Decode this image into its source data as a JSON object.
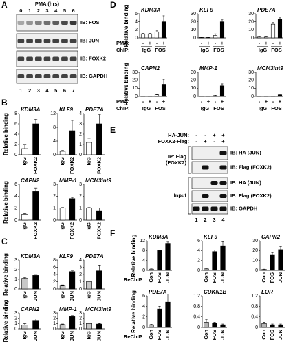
{
  "panel_labels": [
    "A",
    "B",
    "C",
    "D",
    "E",
    "F"
  ],
  "blot_a": {
    "title": "PMA (hrs)",
    "times": [
      "0",
      "1",
      "2",
      "3",
      "4",
      "5",
      "6"
    ],
    "rows": [
      "IB: FOS",
      "IB: JUN",
      "IB: FOXK2",
      "IB: GAPDH"
    ],
    "lanes": [
      "1",
      "2",
      "3",
      "4",
      "5",
      "6",
      "7"
    ]
  },
  "blot_e": {
    "conditions": [
      {
        "label": "HA-JUN:",
        "signs": [
          "-",
          "-",
          "+",
          "+"
        ]
      },
      {
        "label": "FOXK2-Flag:",
        "signs": [
          "-",
          "+",
          "-",
          "+"
        ]
      }
    ],
    "groups": [
      [
        "IP: Flag",
        "(FOXK2)"
      ],
      [
        "Input"
      ]
    ],
    "rows": [
      "IB: HA (JUN)",
      "IB: Flag (FOXK2)",
      "IB: HA (JUN)",
      "IB: Flag (FOXK2)",
      "IB: GAPDH"
    ],
    "lanes": [
      "1",
      "2",
      "3",
      "4"
    ]
  },
  "chart_data": [
    {
      "type": "bar",
      "title": "KDM3A",
      "ylabel": "Relative binding",
      "categories": [
        "IgG",
        "FOXK2"
      ],
      "colors": [
        "#ffffff",
        "#000000"
      ],
      "values": [
        1.2,
        6.0
      ],
      "errors": [
        0.7,
        0.9
      ],
      "ylim": [
        0,
        8
      ],
      "yticks": [
        0,
        2,
        4,
        6,
        8
      ]
    },
    {
      "type": "bar",
      "title": "KLF9",
      "categories": [
        "IgG",
        "FOXK2"
      ],
      "colors": [
        "#ffffff",
        "#000000"
      ],
      "values": [
        1.0,
        7.0
      ],
      "errors": [
        0.3,
        3.0
      ],
      "ylim": [
        0,
        12
      ],
      "yticks": [
        0,
        4,
        8,
        12
      ]
    },
    {
      "type": "bar",
      "title": "PDE7A",
      "categories": [
        "IgG",
        "FOXK2"
      ],
      "colors": [
        "#ffffff",
        "#000000"
      ],
      "values": [
        1.2,
        3.0
      ],
      "errors": [
        0.4,
        0.9
      ],
      "ylim": [
        0,
        4
      ],
      "yticks": [
        0,
        1,
        2,
        3,
        4
      ]
    },
    {
      "type": "bar",
      "title": "CAPN2",
      "ylabel": "Relative binding",
      "categories": [
        "IgG",
        "FOXK2"
      ],
      "colors": [
        "#ffffff",
        "#000000"
      ],
      "values": [
        1.0,
        4.8
      ],
      "errors": [
        0.1,
        0.6
      ],
      "ylim": [
        0,
        6
      ],
      "yticks": [
        0,
        2,
        4,
        6
      ]
    },
    {
      "type": "bar",
      "title": "MMP-1",
      "categories": [
        "IgG",
        "FOXK2"
      ],
      "colors": [
        "#ffffff",
        "#000000"
      ],
      "values": [
        1.0,
        1.8
      ],
      "errors": [
        0.05,
        0.1
      ],
      "ylim": [
        0,
        3
      ],
      "yticks": [
        0,
        1,
        2,
        3
      ]
    },
    {
      "type": "bar",
      "title": "MCM3int9",
      "categories": [
        "IgG",
        "FOXK2"
      ],
      "colors": [
        "#ffffff",
        "#000000"
      ],
      "values": [
        1.0,
        0.8
      ],
      "errors": [
        0.05,
        0.2
      ],
      "ylim": [
        0,
        3
      ],
      "yticks": [
        0,
        1,
        2,
        3
      ]
    },
    {
      "type": "bar",
      "title": "KDM3A",
      "ylabel": "Relative binding",
      "categories": [
        "IgG",
        "JUN"
      ],
      "colors": [
        "#c8c8c8",
        "#000000"
      ],
      "values": [
        1.1,
        1.4
      ],
      "errors": [
        0.1,
        0.1
      ],
      "ylim": [
        0,
        3
      ],
      "yticks": [
        0,
        1,
        2,
        3
      ]
    },
    {
      "type": "bar",
      "title": "KLF9",
      "categories": [
        "IgG",
        "JUN"
      ],
      "colors": [
        "#c8c8c8",
        "#000000"
      ],
      "values": [
        1.0,
        4.8
      ],
      "errors": [
        0.1,
        0.2
      ],
      "ylim": [
        0,
        8
      ],
      "yticks": [
        0,
        2,
        4,
        6,
        8
      ]
    },
    {
      "type": "bar",
      "title": "PDE7A",
      "categories": [
        "IgG",
        "JUN"
      ],
      "colors": [
        "#c8c8c8",
        "#000000"
      ],
      "values": [
        1.0,
        2.5
      ],
      "errors": [
        0.1,
        0.8
      ],
      "ylim": [
        0,
        4
      ],
      "yticks": [
        0,
        1,
        2,
        3,
        4
      ]
    },
    {
      "type": "bar",
      "title": "CAPN2",
      "ylabel": "Relative binding",
      "categories": [
        "IgG",
        "JUN"
      ],
      "colors": [
        "#c8c8c8",
        "#000000"
      ],
      "values": [
        0.7,
        1.6
      ],
      "errors": [
        0.3,
        0.3
      ],
      "ylim": [
        0,
        3
      ],
      "yticks": [
        0,
        1,
        2,
        3
      ]
    },
    {
      "type": "bar",
      "title": "MMP-1",
      "categories": [
        "IgG",
        "JUN"
      ],
      "colors": [
        "#c8c8c8",
        "#000000"
      ],
      "values": [
        0.8,
        2.3
      ],
      "errors": [
        0.1,
        0.2
      ],
      "ylim": [
        0,
        3
      ],
      "yticks": [
        0,
        1,
        2,
        3
      ]
    },
    {
      "type": "bar",
      "title": "MCM3int9",
      "categories": [
        "IgG",
        "JUN"
      ],
      "colors": [
        "#c8c8c8",
        "#000000"
      ],
      "values": [
        1.0,
        0.9
      ],
      "errors": [
        0.1,
        0.1
      ],
      "ylim": [
        0,
        3
      ],
      "yticks": [
        0,
        1,
        2,
        3
      ]
    },
    {
      "type": "bar",
      "title": "KDM3A",
      "ylabel": "Relative binding",
      "row_labels": [
        "PMA:",
        "ChIP:"
      ],
      "categories": [
        "-",
        "+",
        "-",
        "+"
      ],
      "groups": [
        "IgG",
        "FOS"
      ],
      "colors": [
        "#ffffff",
        "#ffffff",
        "#ffffff",
        "#000000"
      ],
      "values": [
        1.0,
        1.0,
        1.5,
        4.0
      ],
      "errors": [
        0.1,
        0.1,
        0.4,
        1.5
      ],
      "ylim": [
        0,
        6
      ],
      "yticks": [
        0,
        2,
        4,
        6
      ]
    },
    {
      "type": "bar",
      "title": "KLF9",
      "categories": [
        "-",
        "+",
        "-",
        "+"
      ],
      "groups": [
        "IgG",
        "FOS"
      ],
      "colors": [
        "#ffffff",
        "#ffffff",
        "#ffffff",
        "#000000"
      ],
      "values": [
        0.5,
        0.5,
        3.0,
        20.0
      ],
      "errors": [
        0.1,
        0.1,
        2.0,
        2.5
      ],
      "ylim": [
        0,
        30
      ],
      "yticks": [
        0,
        10,
        20,
        30
      ]
    },
    {
      "type": "bar",
      "title": "PDE7A",
      "categories": [
        "-",
        "+",
        "-",
        "+"
      ],
      "groups": [
        "IgG",
        "FOS"
      ],
      "colors": [
        "#ffffff",
        "#ffffff",
        "#ffffff",
        "#000000"
      ],
      "values": [
        1.0,
        1.0,
        17.0,
        23.0
      ],
      "errors": [
        0.2,
        0.2,
        2.0,
        2.0
      ],
      "ylim": [
        0,
        30
      ],
      "yticks": [
        0,
        10,
        20,
        30
      ]
    },
    {
      "type": "bar",
      "title": "CAPN2",
      "ylabel": "Relative binding",
      "row_labels": [
        "PMA:",
        "ChIP:"
      ],
      "categories": [
        "-",
        "+",
        "-",
        "+"
      ],
      "groups": [
        "IgG",
        "FOS"
      ],
      "colors": [
        "#ffffff",
        "#ffffff",
        "#ffffff",
        "#000000"
      ],
      "values": [
        0.5,
        0.5,
        2.0,
        15.0
      ],
      "errors": [
        0.1,
        0.1,
        0.5,
        6.0
      ],
      "ylim": [
        0,
        30
      ],
      "yticks": [
        0,
        10,
        20,
        30
      ]
    },
    {
      "type": "bar",
      "title": "MMP-1",
      "categories": [
        "-",
        "+",
        "-",
        "+"
      ],
      "groups": [
        "IgG",
        "FOS"
      ],
      "colors": [
        "#ffffff",
        "#ffffff",
        "#ffffff",
        "#000000"
      ],
      "values": [
        0.5,
        0.5,
        1.0,
        13.0
      ],
      "errors": [
        0.1,
        0.1,
        0.3,
        2.5
      ],
      "ylim": [
        0,
        30
      ],
      "yticks": [
        0,
        10,
        20,
        30
      ]
    },
    {
      "type": "bar",
      "title": "MCM3int9",
      "categories": [
        "-",
        "+",
        "-",
        "+"
      ],
      "groups": [
        "IgG",
        "FOS"
      ],
      "colors": [
        "#ffffff",
        "#ffffff",
        "#ffffff",
        "#000000"
      ],
      "values": [
        0.5,
        0.5,
        0.5,
        2.0
      ],
      "errors": [
        0.1,
        0.1,
        0.1,
        1.0
      ],
      "ylim": [
        0,
        30
      ],
      "yticks": [
        0,
        10,
        20,
        30
      ]
    },
    {
      "type": "bar",
      "title": "KDM3A",
      "ylabel": "Relative binding",
      "row_labels": [
        "ReChIP:"
      ],
      "categories": [
        "Con",
        "FOS",
        "JUN"
      ],
      "colors": [
        "#b4b4b4",
        "#000000",
        "#000000"
      ],
      "values": [
        0.5,
        8.0,
        11.0
      ],
      "errors": [
        0.1,
        0.3,
        0.5
      ],
      "ylim": [
        0,
        12
      ],
      "yticks": [
        0,
        4,
        8,
        12
      ]
    },
    {
      "type": "bar",
      "title": "KLF9",
      "categories": [
        "Con",
        "FOS",
        "JUN"
      ],
      "colors": [
        "#b4b4b4",
        "#000000",
        "#000000"
      ],
      "values": [
        0.3,
        3.8,
        5.0
      ],
      "errors": [
        0.05,
        0.3,
        0.8
      ],
      "ylim": [
        0,
        6
      ],
      "yticks": [
        0,
        2,
        4,
        6
      ]
    },
    {
      "type": "bar",
      "title": "CAPN2",
      "categories": [
        "Con",
        "FOS",
        "JUN"
      ],
      "colors": [
        "#b4b4b4",
        "#000000",
        "#000000"
      ],
      "values": [
        1.0,
        16.0,
        21.0
      ],
      "errors": [
        0.3,
        2.0,
        3.0
      ],
      "ylim": [
        0,
        30
      ],
      "yticks": [
        0,
        10,
        20,
        30
      ]
    },
    {
      "type": "bar",
      "title": "PDE7A",
      "ylabel": "Relative binding",
      "row_labels": [
        "ReChIP:"
      ],
      "categories": [
        "Con",
        "FOS",
        "JUN"
      ],
      "colors": [
        "#b4b4b4",
        "#000000",
        "#000000"
      ],
      "values": [
        0.5,
        3.5,
        4.8
      ],
      "errors": [
        0.1,
        0.5,
        1.5
      ],
      "ylim": [
        0,
        6
      ],
      "yticks": [
        0,
        2,
        4,
        6
      ]
    },
    {
      "type": "bar",
      "title": "CDKN1B",
      "categories": [
        "Con",
        "FOS",
        "JUN"
      ],
      "colors": [
        "#b4b4b4",
        "#000000",
        "#000000"
      ],
      "values": [
        0.2,
        0.15,
        0.1
      ],
      "errors": [
        0.1,
        0.05,
        0.03
      ],
      "ylim": [
        0,
        1.2
      ],
      "yticks": [
        0,
        0.4,
        0.8,
        1.2
      ]
    },
    {
      "type": "bar",
      "title": "LOR",
      "categories": [
        "Con",
        "FOS",
        "JUN"
      ],
      "colors": [
        "#b4b4b4",
        "#000000",
        "#000000"
      ],
      "values": [
        0.15,
        0.1,
        0.1
      ],
      "errors": [
        0.05,
        0.03,
        0.03
      ],
      "ylim": [
        0,
        1.2
      ],
      "yticks": [
        0,
        0.4,
        0.8,
        1.2
      ]
    }
  ]
}
